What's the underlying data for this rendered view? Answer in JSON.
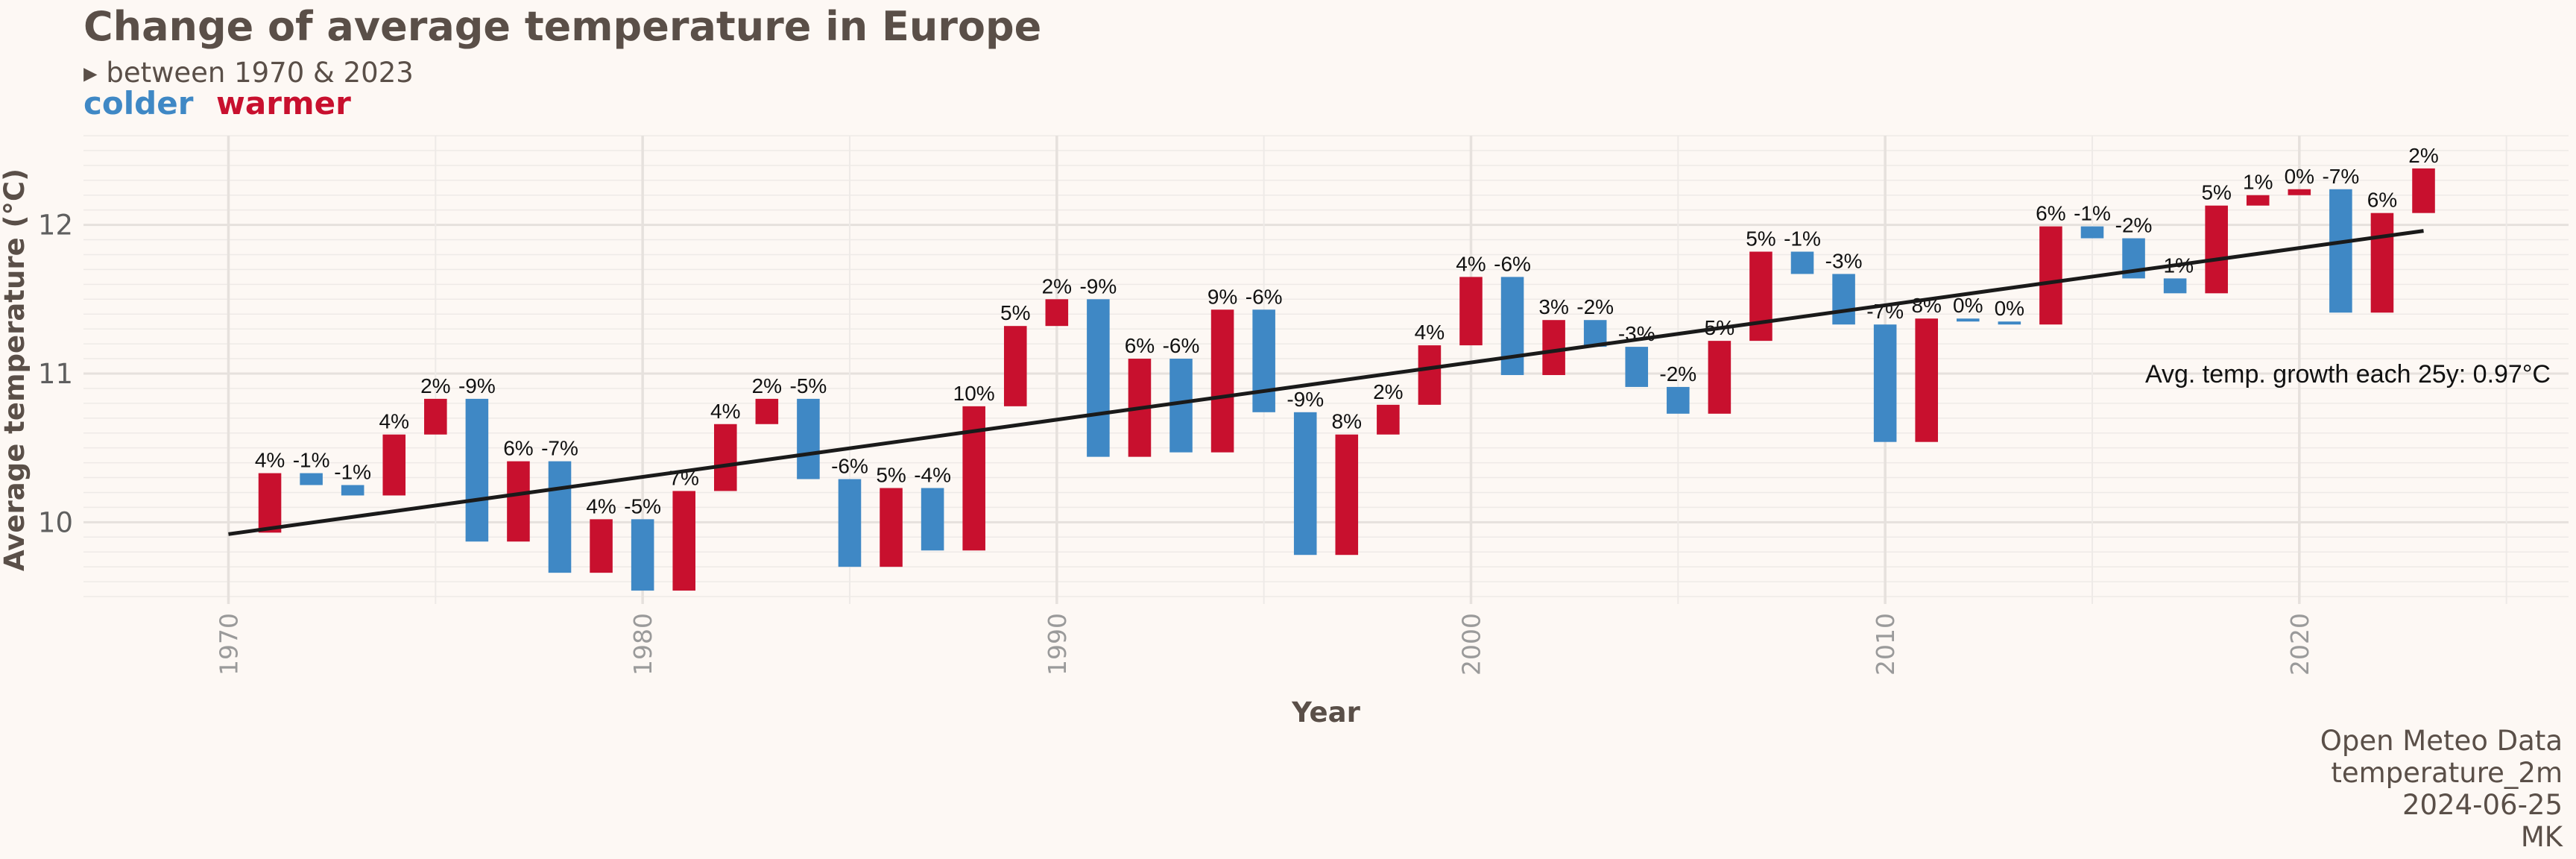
{
  "header": {
    "title": "Change of average temperature in Europe",
    "subtitle": "▸ between 1970 & 2023",
    "legend_colder": "colder",
    "legend_warmer": "warmer"
  },
  "caption": {
    "line1": "Open Meteo Data",
    "line2": "temperature_2m",
    "line3": "2024-06-25",
    "line4": "MK"
  },
  "colors": {
    "colder": "#3f88c5",
    "warmer": "#c8102e",
    "trend": "#1a1a1a",
    "background": "#fdf8f4",
    "grid": "#eeeae7"
  },
  "chart_data": {
    "type": "bar",
    "subtype": "waterfall",
    "xlabel": "Year",
    "ylabel": "Average temperature (°C)",
    "xlim": [
      1966.5,
      2026.5
    ],
    "ylim": [
      9.45,
      12.6
    ],
    "x_ticks": [
      1970,
      1980,
      1990,
      2000,
      2010,
      2020
    ],
    "y_ticks": [
      10,
      11,
      12
    ],
    "grid": true,
    "trend": {
      "x": [
        1970,
        2023
      ],
      "y": [
        9.92,
        11.96
      ],
      "annotation": "Avg. temp. growth each 25y: 0.97°C"
    },
    "bars": [
      {
        "year": 1971,
        "start": 9.93,
        "end": 10.33,
        "label": "4%"
      },
      {
        "year": 1972,
        "start": 10.33,
        "end": 10.25,
        "label": "-1%"
      },
      {
        "year": 1973,
        "start": 10.25,
        "end": 10.18,
        "label": "-1%"
      },
      {
        "year": 1974,
        "start": 10.18,
        "end": 10.59,
        "label": "4%"
      },
      {
        "year": 1975,
        "start": 10.59,
        "end": 10.83,
        "label": "2%"
      },
      {
        "year": 1976,
        "start": 10.83,
        "end": 9.87,
        "label": "-9%"
      },
      {
        "year": 1977,
        "start": 9.87,
        "end": 10.41,
        "label": "6%"
      },
      {
        "year": 1978,
        "start": 10.41,
        "end": 9.66,
        "label": "-7%"
      },
      {
        "year": 1979,
        "start": 9.66,
        "end": 10.02,
        "label": "4%"
      },
      {
        "year": 1980,
        "start": 10.02,
        "end": 9.54,
        "label": "-5%"
      },
      {
        "year": 1981,
        "start": 9.54,
        "end": 10.21,
        "label": "7%"
      },
      {
        "year": 1982,
        "start": 10.21,
        "end": 10.66,
        "label": "4%"
      },
      {
        "year": 1983,
        "start": 10.66,
        "end": 10.83,
        "label": "2%"
      },
      {
        "year": 1984,
        "start": 10.83,
        "end": 10.29,
        "label": "-5%"
      },
      {
        "year": 1985,
        "start": 10.29,
        "end": 9.7,
        "label": "-6%"
      },
      {
        "year": 1986,
        "start": 9.7,
        "end": 10.23,
        "label": "5%"
      },
      {
        "year": 1987,
        "start": 10.23,
        "end": 9.81,
        "label": "-4%"
      },
      {
        "year": 1988,
        "start": 9.81,
        "end": 10.78,
        "label": "10%"
      },
      {
        "year": 1989,
        "start": 10.78,
        "end": 11.32,
        "label": "5%"
      },
      {
        "year": 1990,
        "start": 11.32,
        "end": 11.5,
        "label": "2%"
      },
      {
        "year": 1991,
        "start": 11.5,
        "end": 10.44,
        "label": "-9%"
      },
      {
        "year": 1992,
        "start": 10.44,
        "end": 11.1,
        "label": "6%"
      },
      {
        "year": 1993,
        "start": 11.1,
        "end": 10.47,
        "label": "-6%"
      },
      {
        "year": 1994,
        "start": 10.47,
        "end": 11.43,
        "label": "9%"
      },
      {
        "year": 1995,
        "start": 11.43,
        "end": 10.74,
        "label": "-6%"
      },
      {
        "year": 1996,
        "start": 10.74,
        "end": 9.78,
        "label": "-9%"
      },
      {
        "year": 1997,
        "start": 9.78,
        "end": 10.59,
        "label": "8%"
      },
      {
        "year": 1998,
        "start": 10.59,
        "end": 10.79,
        "label": "2%"
      },
      {
        "year": 1999,
        "start": 10.79,
        "end": 11.19,
        "label": "4%"
      },
      {
        "year": 2000,
        "start": 11.19,
        "end": 11.65,
        "label": "4%"
      },
      {
        "year": 2001,
        "start": 11.65,
        "end": 10.99,
        "label": "-6%"
      },
      {
        "year": 2002,
        "start": 10.99,
        "end": 11.36,
        "label": "3%"
      },
      {
        "year": 2003,
        "start": 11.36,
        "end": 11.18,
        "label": "-2%"
      },
      {
        "year": 2004,
        "start": 11.18,
        "end": 10.91,
        "label": "-3%"
      },
      {
        "year": 2005,
        "start": 10.91,
        "end": 10.73,
        "label": "-2%"
      },
      {
        "year": 2006,
        "start": 10.73,
        "end": 11.22,
        "label": "5%"
      },
      {
        "year": 2007,
        "start": 11.22,
        "end": 11.82,
        "label": "5%"
      },
      {
        "year": 2008,
        "start": 11.82,
        "end": 11.67,
        "label": "-1%"
      },
      {
        "year": 2009,
        "start": 11.67,
        "end": 11.33,
        "label": "-3%"
      },
      {
        "year": 2010,
        "start": 11.33,
        "end": 10.54,
        "label": "-7%"
      },
      {
        "year": 2011,
        "start": 10.54,
        "end": 11.37,
        "label": "8%"
      },
      {
        "year": 2012,
        "start": 11.37,
        "end": 11.35,
        "label": "0%"
      },
      {
        "year": 2013,
        "start": 11.35,
        "end": 11.33,
        "label": "0%"
      },
      {
        "year": 2014,
        "start": 11.33,
        "end": 11.99,
        "label": "6%"
      },
      {
        "year": 2015,
        "start": 11.99,
        "end": 11.91,
        "label": "-1%"
      },
      {
        "year": 2016,
        "start": 11.91,
        "end": 11.64,
        "label": "-2%"
      },
      {
        "year": 2017,
        "start": 11.64,
        "end": 11.54,
        "label": "-1%"
      },
      {
        "year": 2018,
        "start": 11.54,
        "end": 12.13,
        "label": "5%"
      },
      {
        "year": 2019,
        "start": 12.13,
        "end": 12.2,
        "label": "1%"
      },
      {
        "year": 2020,
        "start": 12.2,
        "end": 12.24,
        "label": "0%"
      },
      {
        "year": 2021,
        "start": 12.24,
        "end": 11.41,
        "label": "-7%"
      },
      {
        "year": 2022,
        "start": 11.41,
        "end": 12.08,
        "label": "6%"
      },
      {
        "year": 2023,
        "start": 12.08,
        "end": 12.38,
        "label": "2%"
      }
    ]
  }
}
